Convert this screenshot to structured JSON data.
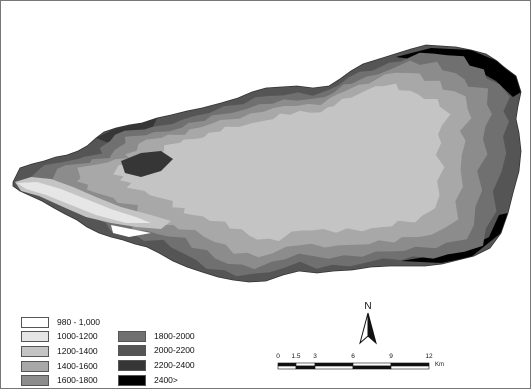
{
  "map": {
    "type": "elevation-classes-map",
    "legend": {
      "classes": [
        {
          "label": "980 - 1,000",
          "color": "#ffffff"
        },
        {
          "label": "1000-1200",
          "color": "#e6e6e6"
        },
        {
          "label": "1200-1400",
          "color": "#c4c4c4"
        },
        {
          "label": "1400-1600",
          "color": "#a8a8a8"
        },
        {
          "label": "1600-1800",
          "color": "#8c8c8c"
        },
        {
          "label": "1800-2000",
          "color": "#707070"
        },
        {
          "label": "2000-2200",
          "color": "#555555"
        },
        {
          "label": "2200-2400",
          "color": "#363636"
        },
        {
          "label": "2400>",
          "color": "#000000"
        }
      ]
    },
    "north_arrow": {
      "label": "N",
      "icon": "north-arrow-icon"
    },
    "scale_bar": {
      "ticks": [
        "0",
        "1.5",
        "3",
        "6",
        "9",
        "12"
      ],
      "unit": "Km"
    }
  }
}
